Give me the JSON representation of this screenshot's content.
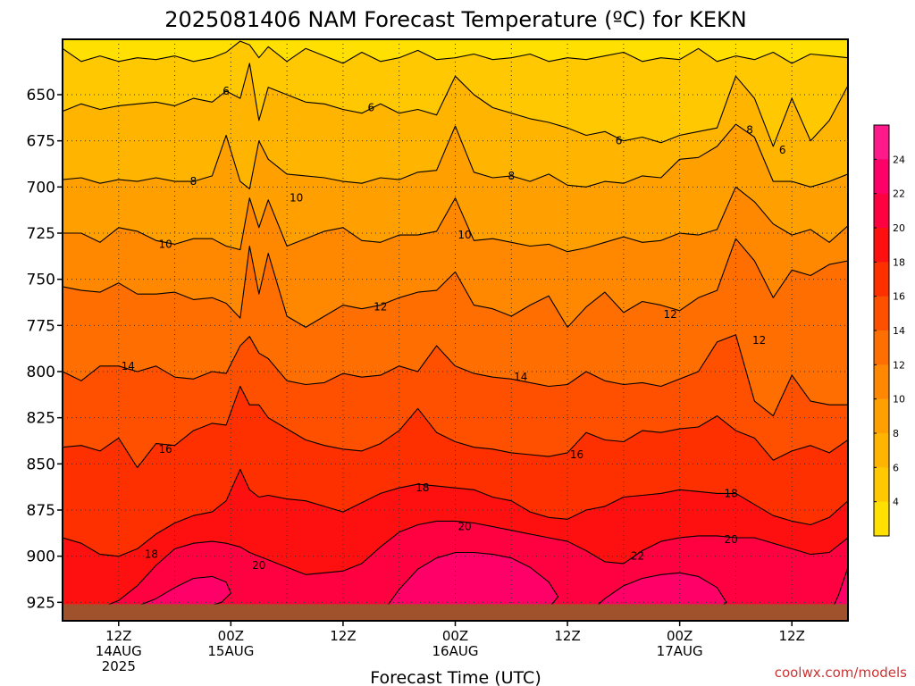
{
  "title": "2025081406 NAM Forecast Temperature (ºC) for KEKN",
  "credit": "coolwx.com/models",
  "chart_data": {
    "type": "heatmap",
    "title": "2025081406 NAM Forecast Temperature (ºC) for KEKN",
    "xlabel": "Forecast Time (UTC)",
    "ylabel": "",
    "x_ticks": [
      {
        "hour": 6,
        "lines": [
          "12Z",
          "14AUG",
          "2025"
        ]
      },
      {
        "hour": 18,
        "lines": [
          "00Z",
          "15AUG"
        ]
      },
      {
        "hour": 30,
        "lines": [
          "12Z"
        ]
      },
      {
        "hour": 42,
        "lines": [
          "00Z",
          "16AUG"
        ]
      },
      {
        "hour": 54,
        "lines": [
          "12Z"
        ]
      },
      {
        "hour": 66,
        "lines": [
          "00Z",
          "17AUG"
        ]
      },
      {
        "hour": 78,
        "lines": [
          "12Z"
        ]
      }
    ],
    "x_minor_hours": [
      12,
      24,
      36,
      48,
      60,
      72
    ],
    "xlim": [
      0,
      84
    ],
    "y_ticks": [
      650,
      675,
      700,
      725,
      750,
      775,
      800,
      825,
      850,
      875,
      900,
      925
    ],
    "ylim": [
      620,
      935
    ],
    "y_scale": "linear",
    "grid": true,
    "contour_levels": [
      4,
      6,
      8,
      10,
      12,
      14,
      16,
      18,
      20,
      22,
      24
    ],
    "colorbar_labels": [
      "4",
      "6",
      "8",
      "10",
      "12",
      "14",
      "16",
      "18",
      "20",
      "22",
      "24"
    ],
    "color_bands": [
      "#ffff00",
      "#ffe000",
      "#ffc800",
      "#ffb400",
      "#ffa000",
      "#ff8800",
      "#ff6e00",
      "#ff5000",
      "#ff3000",
      "#ff1010",
      "#ff0040",
      "#ff0068",
      "#ff1a8c"
    ],
    "ground_color": "#a0522d",
    "contour_labels": [
      {
        "text": "6",
        "hour": 17.5,
        "p": 648
      },
      {
        "text": "6",
        "hour": 33.0,
        "p": 657
      },
      {
        "text": "6",
        "hour": 59.5,
        "p": 675
      },
      {
        "text": "6",
        "hour": 77.0,
        "p": 680
      },
      {
        "text": "8",
        "hour": 14.0,
        "p": 697
      },
      {
        "text": "8",
        "hour": 48.0,
        "p": 694
      },
      {
        "text": "8",
        "hour": 73.5,
        "p": 669
      },
      {
        "text": "10",
        "hour": 11.0,
        "p": 731
      },
      {
        "text": "10",
        "hour": 25.0,
        "p": 706
      },
      {
        "text": "10",
        "hour": 43.0,
        "p": 726
      },
      {
        "text": "12",
        "hour": 34.0,
        "p": 765
      },
      {
        "text": "12",
        "hour": 65.0,
        "p": 769
      },
      {
        "text": "12",
        "hour": 74.5,
        "p": 783
      },
      {
        "text": "14",
        "hour": 7.0,
        "p": 797
      },
      {
        "text": "14",
        "hour": 49.0,
        "p": 803
      },
      {
        "text": "16",
        "hour": 11.0,
        "p": 842
      },
      {
        "text": "16",
        "hour": 55.0,
        "p": 845
      },
      {
        "text": "18",
        "hour": 38.5,
        "p": 863
      },
      {
        "text": "18",
        "hour": 71.5,
        "p": 866
      },
      {
        "text": "18",
        "hour": 9.5,
        "p": 899
      },
      {
        "text": "20",
        "hour": 43.0,
        "p": 884
      },
      {
        "text": "20",
        "hour": 71.5,
        "p": 891
      },
      {
        "text": "20",
        "hour": 21.0,
        "p": 905
      },
      {
        "text": "22",
        "hour": 61.5,
        "p": 900
      }
    ],
    "isotherms": [
      {
        "level": 4,
        "hours": [
          0,
          2,
          4,
          6,
          8,
          10,
          12,
          14,
          16,
          17.5,
          19,
          20,
          21,
          22,
          24,
          26,
          28,
          30,
          32,
          34,
          36,
          38,
          40,
          42,
          44,
          46,
          48,
          50,
          52,
          54,
          56,
          58,
          60,
          62,
          64,
          66,
          68,
          70,
          72,
          74,
          76,
          78,
          80,
          82,
          84
        ],
        "p": [
          625,
          632,
          629,
          632,
          630,
          631,
          629,
          632,
          630,
          627,
          621,
          623,
          630,
          624,
          632,
          625,
          629,
          633,
          627,
          632,
          630,
          626,
          631,
          630,
          628,
          631,
          630,
          628,
          632,
          630,
          631,
          629,
          627,
          632,
          630,
          631,
          625,
          632,
          629,
          631,
          627,
          633,
          628,
          629,
          630
        ]
      },
      {
        "level": 6,
        "hours": [
          0,
          2,
          4,
          6,
          8,
          10,
          12,
          14,
          16,
          17.5,
          19,
          20,
          21,
          22,
          24,
          26,
          28,
          30,
          32,
          34,
          36,
          38,
          40,
          42,
          44,
          46,
          48,
          50,
          52,
          54,
          56,
          58,
          60,
          62,
          64,
          66,
          68,
          70,
          72,
          74,
          76,
          78,
          80,
          82,
          84
        ],
        "p": [
          659,
          655,
          658,
          656,
          655,
          654,
          656,
          652,
          654,
          648,
          652,
          633,
          664,
          646,
          650,
          654,
          655,
          658,
          660,
          655,
          660,
          658,
          661,
          640,
          650,
          657,
          660,
          663,
          665,
          668,
          672,
          670,
          675,
          673,
          676,
          672,
          670,
          668,
          640,
          652,
          678,
          652,
          675,
          664,
          645
        ]
      },
      {
        "level": 8,
        "hours": [
          0,
          2,
          4,
          6,
          8,
          10,
          12,
          14,
          16,
          17.5,
          19,
          20,
          21,
          22,
          24,
          26,
          28,
          30,
          32,
          34,
          36,
          38,
          40,
          42,
          44,
          46,
          48,
          50,
          52,
          54,
          56,
          58,
          60,
          62,
          64,
          66,
          68,
          70,
          72,
          74,
          76,
          78,
          80,
          82,
          84
        ],
        "p": [
          696,
          695,
          698,
          696,
          697,
          695,
          697,
          697,
          694,
          672,
          697,
          701,
          675,
          685,
          693,
          694,
          695,
          697,
          698,
          695,
          696,
          692,
          691,
          667,
          692,
          695,
          694,
          697,
          693,
          699,
          700,
          697,
          698,
          694,
          695,
          685,
          684,
          678,
          666,
          673,
          697,
          697,
          700,
          697,
          693
        ]
      },
      {
        "level": 10,
        "hours": [
          0,
          2,
          4,
          6,
          8,
          10,
          12,
          14,
          16,
          17.5,
          19,
          20,
          21,
          22,
          24,
          26,
          28,
          30,
          32,
          34,
          36,
          38,
          40,
          42,
          44,
          46,
          48,
          50,
          52,
          54,
          56,
          58,
          60,
          62,
          64,
          66,
          68,
          70,
          72,
          74,
          76,
          78,
          80,
          82,
          84
        ],
        "p": [
          725,
          725,
          730,
          722,
          724,
          729,
          731,
          728,
          728,
          732,
          734,
          706,
          722,
          707,
          732,
          728,
          724,
          722,
          729,
          730,
          726,
          726,
          724,
          706,
          729,
          728,
          730,
          732,
          731,
          735,
          733,
          730,
          727,
          730,
          729,
          725,
          726,
          723,
          700,
          708,
          720,
          726,
          723,
          730,
          721
        ]
      },
      {
        "level": 12,
        "hours": [
          0,
          2,
          4,
          6,
          8,
          10,
          12,
          14,
          16,
          17.5,
          19,
          20,
          21,
          22,
          24,
          26,
          28,
          30,
          32,
          34,
          36,
          38,
          40,
          42,
          44,
          46,
          48,
          50,
          52,
          54,
          56,
          58,
          60,
          62,
          64,
          66,
          68,
          70,
          72,
          74,
          76,
          78,
          80,
          82,
          84
        ],
        "p": [
          754,
          756,
          757,
          752,
          758,
          758,
          757,
          761,
          760,
          763,
          771,
          732,
          758,
          736,
          770,
          776,
          770,
          764,
          766,
          764,
          760,
          757,
          756,
          746,
          764,
          766,
          770,
          764,
          759,
          776,
          765,
          757,
          768,
          762,
          764,
          767,
          760,
          756,
          728,
          740,
          760,
          745,
          748,
          742,
          740
        ]
      },
      {
        "level": 14,
        "hours": [
          0,
          2,
          4,
          6,
          8,
          10,
          12,
          14,
          16,
          17.5,
          19,
          20,
          21,
          22,
          24,
          26,
          28,
          30,
          32,
          34,
          36,
          38,
          40,
          42,
          44,
          46,
          48,
          50,
          52,
          54,
          56,
          58,
          60,
          62,
          64,
          66,
          68,
          70,
          72,
          74,
          76,
          78,
          80,
          82,
          84
        ],
        "p": [
          800,
          805,
          797,
          797,
          800,
          797,
          803,
          804,
          800,
          801,
          786,
          781,
          790,
          793,
          805,
          807,
          806,
          801,
          803,
          802,
          797,
          800,
          786,
          797,
          801,
          803,
          804,
          806,
          808,
          807,
          800,
          805,
          807,
          806,
          808,
          804,
          800,
          784,
          780,
          816,
          824,
          802,
          816,
          818,
          818
        ]
      },
      {
        "level": 16,
        "hours": [
          0,
          2,
          4,
          6,
          8,
          10,
          12,
          14,
          16,
          17.5,
          19,
          20,
          21,
          22,
          24,
          26,
          28,
          30,
          32,
          34,
          36,
          38,
          40,
          42,
          44,
          46,
          48,
          50,
          52,
          54,
          56,
          58,
          60,
          62,
          64,
          66,
          68,
          70,
          72,
          74,
          76,
          78,
          80,
          82,
          84
        ],
        "p": [
          841,
          840,
          843,
          836,
          852,
          839,
          840,
          832,
          828,
          829,
          808,
          818,
          818,
          825,
          831,
          837,
          840,
          842,
          843,
          839,
          832,
          820,
          833,
          838,
          841,
          842,
          844,
          845,
          846,
          844,
          833,
          837,
          838,
          832,
          833,
          831,
          830,
          824,
          832,
          836,
          848,
          843,
          840,
          844,
          837
        ]
      },
      {
        "level": 18,
        "hours": [
          0,
          2,
          4,
          6,
          8,
          10,
          12,
          14,
          16,
          17.5,
          19,
          20,
          21,
          22,
          24,
          26,
          28,
          30,
          32,
          34,
          36,
          38,
          40,
          42,
          44,
          46,
          48,
          50,
          52,
          54,
          56,
          58,
          60,
          62,
          64,
          66,
          68,
          70,
          72,
          74,
          76,
          78,
          80,
          82,
          84
        ],
        "p": [
          890,
          893,
          899,
          900,
          896,
          888,
          882,
          878,
          876,
          870,
          853,
          864,
          868,
          867,
          869,
          870,
          873,
          876,
          871,
          866,
          863,
          861,
          862,
          863,
          864,
          868,
          870,
          876,
          879,
          880,
          875,
          873,
          868,
          867,
          866,
          864,
          865,
          866,
          866,
          872,
          878,
          881,
          883,
          879,
          870
        ]
      },
      {
        "level": 20,
        "hours": [
          0,
          2,
          4,
          6,
          8,
          10,
          12,
          14,
          16,
          17.5,
          19,
          20,
          21,
          22,
          24,
          26,
          28,
          30,
          32,
          34,
          36,
          38,
          40,
          42,
          44,
          46,
          48,
          50,
          52,
          54,
          56,
          58,
          60,
          62,
          64,
          66,
          68,
          70,
          72,
          74,
          76,
          78,
          80,
          82,
          84
        ],
        "p": [
          930,
          929,
          928,
          924,
          916,
          905,
          896,
          893,
          892,
          893,
          895,
          898,
          900,
          902,
          906,
          910,
          909,
          908,
          904,
          895,
          887,
          883,
          881,
          881,
          882,
          884,
          886,
          888,
          890,
          892,
          897,
          903,
          904,
          897,
          892,
          890,
          889,
          889,
          890,
          890,
          893,
          896,
          899,
          898,
          890
        ]
      },
      {
        "level": 22,
        "hours": [
          4,
          6,
          8,
          10,
          12,
          14,
          16,
          17.5,
          18,
          17,
          15,
          13,
          11,
          8,
          5,
          4
        ],
        "p": [
          932,
          930,
          927,
          923,
          917,
          912,
          911,
          914,
          920,
          925,
          928,
          929,
          930,
          930,
          932,
          932
        ]
      },
      {
        "level": 22,
        "hours": [
          34,
          36,
          38,
          40,
          42,
          44,
          46,
          48,
          50,
          52,
          53,
          52,
          50,
          46,
          42,
          38,
          35,
          34
        ],
        "p": [
          932,
          918,
          907,
          901,
          898,
          898,
          899,
          901,
          906,
          914,
          922,
          928,
          930,
          931,
          930,
          930,
          931,
          932
        ]
      },
      {
        "level": 22,
        "hours": [
          56,
          58,
          60,
          62,
          64,
          66,
          68,
          70,
          71,
          70,
          66,
          62,
          58,
          56
        ],
        "p": [
          932,
          923,
          916,
          912,
          910,
          909,
          911,
          917,
          925,
          929,
          930,
          930,
          931,
          932
        ]
      },
      {
        "level": 22,
        "hours": [
          82,
          83,
          84
        ],
        "p": [
          932,
          921,
          906
        ]
      }
    ]
  }
}
